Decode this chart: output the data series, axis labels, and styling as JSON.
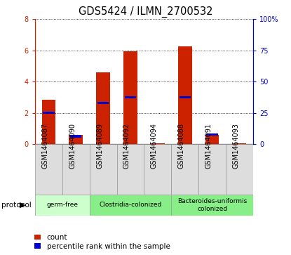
{
  "title": "GDS5424 / ILMN_2700532",
  "samples": [
    "GSM1464087",
    "GSM1464090",
    "GSM1464089",
    "GSM1464092",
    "GSM1464094",
    "GSM1464088",
    "GSM1464091",
    "GSM1464093"
  ],
  "counts": [
    2.85,
    0.6,
    4.6,
    5.95,
    0.03,
    6.25,
    0.6,
    0.03
  ],
  "percentile_ranks": [
    25.0,
    6.25,
    33.0,
    37.5,
    0.0,
    37.5,
    7.5,
    0.0
  ],
  "bar_color": "#cc2200",
  "pct_color": "#0000cc",
  "ylim_left": [
    0,
    8
  ],
  "ylim_right": [
    0,
    100
  ],
  "yticks_left": [
    0,
    2,
    4,
    6,
    8
  ],
  "yticks_right": [
    0,
    25,
    50,
    75,
    100
  ],
  "proto_groups": [
    {
      "label": "germ-free",
      "start": 0,
      "end": 1,
      "color": "#ccffcc"
    },
    {
      "label": "Clostridia-colonized",
      "start": 2,
      "end": 4,
      "color": "#88ee88"
    },
    {
      "label": "Bacteroides-uniformis\ncolonized",
      "start": 5,
      "end": 7,
      "color": "#88ee88"
    }
  ],
  "protocol_label": "protocol",
  "legend_count_label": "count",
  "legend_pct_label": "percentile rank within the sample",
  "bar_width": 0.5,
  "title_fontsize": 10.5,
  "tick_fontsize": 7,
  "legend_fontsize": 7.5
}
